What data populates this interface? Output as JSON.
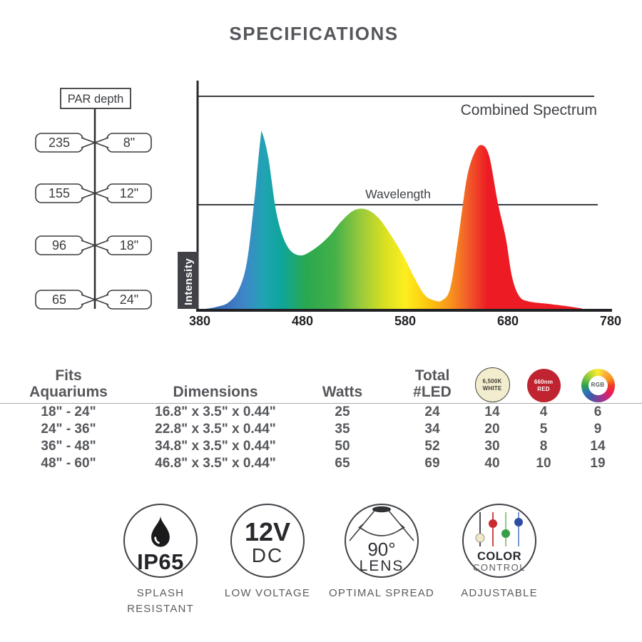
{
  "title": "SPECIFICATIONS",
  "par_depth": {
    "header": "PAR depth",
    "rows": [
      {
        "par": "235",
        "depth": "8\""
      },
      {
        "par": "155",
        "depth": "12\""
      },
      {
        "par": "96",
        "depth": "18\""
      },
      {
        "par": "65",
        "depth": "24\""
      }
    ]
  },
  "chart_data": {
    "type": "area",
    "title": "Combined Spectrum",
    "xlabel": "Wavelength",
    "ylabel": "Intensity",
    "xlim": [
      380,
      780
    ],
    "ylim": [
      0,
      1
    ],
    "x_ticks": [
      "380",
      "480",
      "580",
      "680",
      "780"
    ],
    "grid": false,
    "series": [
      {
        "name": "Combined Spectrum",
        "points": [
          [
            386,
            0
          ],
          [
            397,
            0.01
          ],
          [
            408,
            0.03
          ],
          [
            418,
            0.09
          ],
          [
            426,
            0.22
          ],
          [
            433,
            0.5
          ],
          [
            439,
            0.79
          ],
          [
            441,
            0.82
          ],
          [
            447,
            0.7
          ],
          [
            455,
            0.44
          ],
          [
            465,
            0.295
          ],
          [
            477,
            0.25
          ],
          [
            490,
            0.275
          ],
          [
            505,
            0.335
          ],
          [
            518,
            0.41
          ],
          [
            530,
            0.46
          ],
          [
            542,
            0.465
          ],
          [
            554,
            0.425
          ],
          [
            566,
            0.345
          ],
          [
            578,
            0.25
          ],
          [
            589,
            0.145
          ],
          [
            599,
            0.065
          ],
          [
            608,
            0.04
          ],
          [
            616,
            0.04
          ],
          [
            624,
            0.1
          ],
          [
            632,
            0.34
          ],
          [
            640,
            0.61
          ],
          [
            648,
            0.735
          ],
          [
            655,
            0.765
          ],
          [
            662,
            0.71
          ],
          [
            670,
            0.5
          ],
          [
            678,
            0.33
          ],
          [
            684,
            0.15
          ],
          [
            691,
            0.06
          ],
          [
            700,
            0.035
          ],
          [
            718,
            0.024
          ],
          [
            738,
            0.012
          ],
          [
            752,
            0.002
          ]
        ]
      }
    ],
    "gradient_stops": [
      {
        "o": 0,
        "c": "#2e59a6"
      },
      {
        "o": 0.06,
        "c": "#3a6fbd"
      },
      {
        "o": 0.11,
        "c": "#3e87c8"
      },
      {
        "o": 0.155,
        "c": "#21a3b4"
      },
      {
        "o": 0.2,
        "c": "#0ea69a"
      },
      {
        "o": 0.26,
        "c": "#2aa84e"
      },
      {
        "o": 0.33,
        "c": "#45b149"
      },
      {
        "o": 0.39,
        "c": "#96c93d"
      },
      {
        "o": 0.45,
        "c": "#d9e021"
      },
      {
        "o": 0.5,
        "c": "#fdee21"
      },
      {
        "o": 0.555,
        "c": "#fdc70c"
      },
      {
        "o": 0.61,
        "c": "#f7941d"
      },
      {
        "o": 0.655,
        "c": "#f15a29"
      },
      {
        "o": 0.7,
        "c": "#ed1c24"
      },
      {
        "o": 1,
        "c": "#ed1c24"
      }
    ]
  },
  "table": {
    "headers": [
      {
        "l1": "Fits",
        "l2": "Aquariums"
      },
      {
        "l1": "",
        "l2": "Dimensions"
      },
      {
        "l1": "",
        "l2": "Watts"
      },
      {
        "l1": "Total",
        "l2": "#LED"
      },
      {
        "l1": "6,500K",
        "l2": "WHITE"
      },
      {
        "l1": "660nm",
        "l2": "RED"
      },
      {
        "l1": "RGB",
        "l2": ""
      }
    ],
    "rows": [
      [
        "18\" - 24\"",
        "16.8\" x 3.5\" x 0.44\"",
        "25",
        "24",
        "14",
        "4",
        "6"
      ],
      [
        "24\" - 36\"",
        "22.8\" x 3.5\" x 0.44\"",
        "35",
        "34",
        "20",
        "5",
        "9"
      ],
      [
        "36\" - 48\"",
        "34.8\" x 3.5\" x 0.44\"",
        "50",
        "52",
        "30",
        "8",
        "14"
      ],
      [
        "48\" - 60\"",
        "46.8\" x 3.5\" x 0.44\"",
        "65",
        "69",
        "40",
        "10",
        "19"
      ]
    ]
  },
  "badges": [
    {
      "line1": "IP65",
      "line2": "",
      "caption1": "SPLASH",
      "caption2": "RESISTANT"
    },
    {
      "line1": "12V",
      "line2": "DC",
      "caption1": "LOW VOLTAGE",
      "caption2": ""
    },
    {
      "line1": "90°",
      "line2": "LENS",
      "caption1": "OPTIMAL SPREAD",
      "caption2": ""
    },
    {
      "line1": "COLOR",
      "line2": "CONTROL",
      "caption1": "ADJUSTABLE",
      "caption2": ""
    }
  ]
}
